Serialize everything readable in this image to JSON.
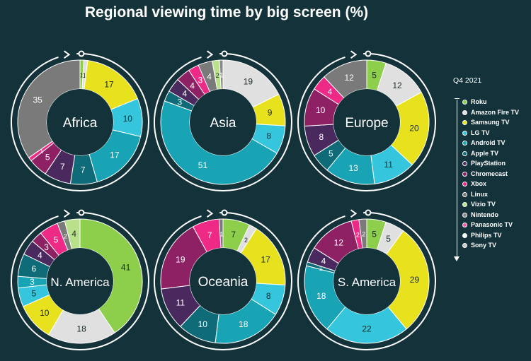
{
  "title": "Regional viewing time by big screen (%)",
  "legend": {
    "title": "Q4 2021",
    "items": [
      {
        "label": "Roku",
        "color": "#8dcf4a"
      },
      {
        "label": "Amazon Fire TV",
        "color": "#e0e0e0"
      },
      {
        "label": "Samsung TV",
        "color": "#e8e21e"
      },
      {
        "label": "LG TV",
        "color": "#35c5dc"
      },
      {
        "label": "Android TV",
        "color": "#18a4b4"
      },
      {
        "label": "Apple TV",
        "color": "#0f6b78"
      },
      {
        "label": "PlayStation",
        "color": "#4a2a5e"
      },
      {
        "label": "Chromecast",
        "color": "#8e2064"
      },
      {
        "label": "Xbox",
        "color": "#ee2a86"
      },
      {
        "label": "Linux",
        "color": "#7a7a7a"
      },
      {
        "label": "Vizio TV",
        "color": "#b9e08a"
      },
      {
        "label": "Nintendo",
        "color": "#8a8a8a"
      },
      {
        "label": "Panasonic TV",
        "color": "#f05aa0"
      },
      {
        "label": "Philips TV",
        "color": "#ffffff"
      },
      {
        "label": "Sony TV",
        "color": "#c8c8c8"
      }
    ]
  },
  "chart_data": [
    {
      "type": "pie",
      "title": "Africa",
      "slices": [
        {
          "series": "Roku",
          "value": 1
        },
        {
          "series": "Amazon Fire TV",
          "value": 1
        },
        {
          "series": "Samsung TV",
          "value": 17
        },
        {
          "series": "LG TV",
          "value": 10
        },
        {
          "series": "Android TV",
          "value": 17
        },
        {
          "series": "Apple TV",
          "value": 7
        },
        {
          "series": "PlayStation",
          "value": 7
        },
        {
          "series": "Chromecast",
          "value": 5
        },
        {
          "series": "Xbox",
          "value": 1
        },
        {
          "series": "Linux",
          "value": 35
        }
      ]
    },
    {
      "type": "pie",
      "title": "Asia",
      "slices": [
        {
          "series": "Amazon Fire TV",
          "value": 19
        },
        {
          "series": "Samsung TV",
          "value": 9
        },
        {
          "series": "LG TV",
          "value": 8
        },
        {
          "series": "Android TV",
          "value": 51
        },
        {
          "series": "Apple TV",
          "value": 3
        },
        {
          "series": "PlayStation",
          "value": 4
        },
        {
          "series": "Chromecast",
          "value": 4
        },
        {
          "series": "Xbox",
          "value": 3
        },
        {
          "series": "Linux",
          "value": 4
        },
        {
          "series": "Vizio TV",
          "value": 2
        },
        {
          "series": "Nintendo",
          "value": 1
        }
      ]
    },
    {
      "type": "pie",
      "title": "Europe",
      "slices": [
        {
          "series": "Roku",
          "value": 5
        },
        {
          "series": "Amazon Fire TV",
          "value": 12
        },
        {
          "series": "Samsung TV",
          "value": 20
        },
        {
          "series": "LG TV",
          "value": 11
        },
        {
          "series": "Android TV",
          "value": 13
        },
        {
          "series": "Apple TV",
          "value": 5
        },
        {
          "series": "PlayStation",
          "value": 8
        },
        {
          "series": "Chromecast",
          "value": 10
        },
        {
          "series": "Xbox",
          "value": 4
        },
        {
          "series": "Linux",
          "value": 12
        }
      ]
    },
    {
      "type": "pie",
      "title": "N. America",
      "slices": [
        {
          "series": "Roku",
          "value": 41
        },
        {
          "series": "Amazon Fire TV",
          "value": 18
        },
        {
          "series": "Samsung TV",
          "value": 10
        },
        {
          "series": "LG TV",
          "value": 5
        },
        {
          "series": "Android TV",
          "value": 3
        },
        {
          "series": "Apple TV",
          "value": 6
        },
        {
          "series": "PlayStation",
          "value": 4
        },
        {
          "series": "Chromecast",
          "value": 3
        },
        {
          "series": "Xbox",
          "value": 5
        },
        {
          "series": "Linux",
          "value": 2
        },
        {
          "series": "Vizio TV",
          "value": 4
        }
      ]
    },
    {
      "type": "pie",
      "title": "Oceania",
      "slices": [
        {
          "series": "Roku",
          "value": 7
        },
        {
          "series": "Amazon Fire TV",
          "value": 2
        },
        {
          "series": "Samsung TV",
          "value": 17
        },
        {
          "series": "LG TV",
          "value": 8
        },
        {
          "series": "Android TV",
          "value": 18
        },
        {
          "series": "Apple TV",
          "value": 10
        },
        {
          "series": "PlayStation",
          "value": 11
        },
        {
          "series": "Chromecast",
          "value": 19
        },
        {
          "series": "Xbox",
          "value": 7
        },
        {
          "series": "Linux",
          "value": 1
        }
      ]
    },
    {
      "type": "pie",
      "title": "S. America",
      "slices": [
        {
          "series": "Roku",
          "value": 5
        },
        {
          "series": "Amazon Fire TV",
          "value": 5
        },
        {
          "series": "Samsung TV",
          "value": 29
        },
        {
          "series": "LG TV",
          "value": 22
        },
        {
          "series": "Android TV",
          "value": 18
        },
        {
          "series": "Apple TV",
          "value": 1
        },
        {
          "series": "PlayStation",
          "value": 4
        },
        {
          "series": "Chromecast",
          "value": 12
        },
        {
          "series": "Xbox",
          "value": 2
        },
        {
          "series": "Linux",
          "value": 2
        }
      ]
    }
  ]
}
